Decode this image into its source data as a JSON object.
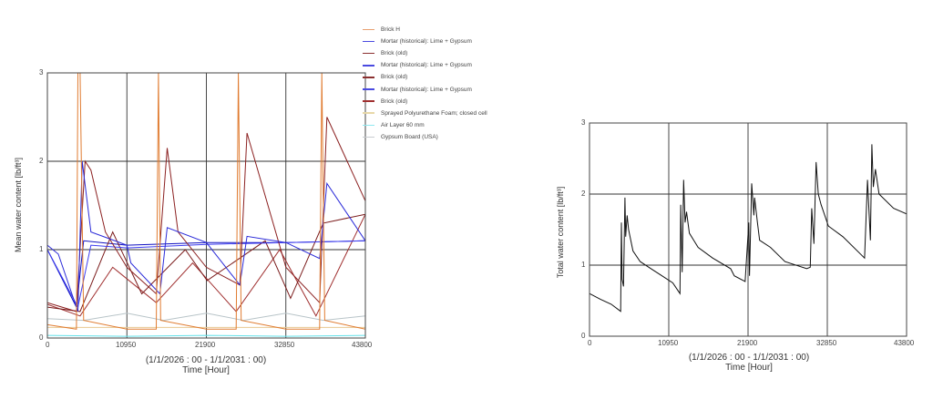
{
  "chart_data": [
    {
      "type": "line",
      "title": "",
      "xlabel": "Time  [Hour]",
      "xsubtitle": "(1/1/2026 : 00 - 1/1/2031 : 00)",
      "ylabel": "Mean water content [lb/ft³]",
      "xlim": [
        0,
        43800
      ],
      "ylim": [
        0,
        3
      ],
      "x_ticks": [
        "0",
        "10950",
        "21900",
        "32850",
        "43800"
      ],
      "y_ticks": [
        "0",
        "1",
        "2",
        "3"
      ],
      "grid": true,
      "legend_position": "right-top",
      "series": [
        {
          "name": "Brick H",
          "color": "#e07b30",
          "x": [
            0,
            4000,
            4200,
            4500,
            5000,
            10950,
            15000,
            15300,
            15600,
            21900,
            26000,
            26300,
            26700,
            32850,
            37500,
            37800,
            38200,
            43800
          ],
          "values": [
            0.15,
            0.1,
            3.0,
            3.0,
            0.2,
            0.1,
            0.1,
            3.0,
            0.2,
            0.1,
            0.1,
            3.0,
            0.2,
            0.1,
            0.1,
            3.0,
            0.2,
            0.1
          ]
        },
        {
          "name": "Mortar (historical): Lime + Gypsum",
          "color": "#2a2ad8",
          "x": [
            0,
            1500,
            4200,
            4800,
            6000,
            10950,
            11500,
            15500,
            16500,
            21900,
            26500,
            27500,
            32850,
            37500,
            38500,
            43800
          ],
          "values": [
            1.05,
            0.95,
            0.3,
            2.0,
            1.2,
            1.05,
            0.85,
            0.5,
            1.25,
            1.08,
            0.6,
            1.15,
            1.08,
            0.9,
            1.75,
            1.1
          ]
        },
        {
          "name": "Brick (old)",
          "color": "#8b2020",
          "x": [
            0,
            4000,
            5200,
            6000,
            8000,
            10950,
            15000,
            16500,
            18000,
            21900,
            26500,
            27500,
            32850,
            37500,
            38500,
            43800
          ],
          "values": [
            0.4,
            0.3,
            2.0,
            1.9,
            1.2,
            0.8,
            0.5,
            2.15,
            1.2,
            0.8,
            0.6,
            2.32,
            0.8,
            0.4,
            2.5,
            1.55
          ]
        },
        {
          "name": "Mortar (historical): Lime + Gypsum",
          "color": "#3c3cf0",
          "x": [
            0,
            4200,
            6000,
            10950,
            21900,
            32850,
            43800
          ],
          "values": [
            1.0,
            0.35,
            1.05,
            1.02,
            1.06,
            1.08,
            1.1
          ]
        },
        {
          "name": "Brick (old)",
          "color": "#7a1a1a",
          "x": [
            0,
            4500,
            9000,
            13000,
            19000,
            22000,
            30000,
            33500,
            38000,
            43800
          ],
          "values": [
            0.35,
            0.3,
            1.2,
            0.5,
            1.0,
            0.65,
            1.1,
            0.45,
            1.3,
            1.4
          ]
        },
        {
          "name": "Mortar (historical): Lime + Gypsum",
          "color": "#1010c0",
          "x": [
            0,
            4000,
            5000,
            10950,
            21900,
            32850,
            43800
          ],
          "values": [
            1.0,
            0.35,
            1.1,
            1.05,
            1.08,
            1.08,
            1.1
          ]
        },
        {
          "name": "Brick (old)",
          "color": "#a03030",
          "x": [
            0,
            4500,
            9000,
            15000,
            20000,
            26000,
            32000,
            37000,
            43800
          ],
          "values": [
            0.38,
            0.25,
            0.8,
            0.4,
            0.85,
            0.3,
            1.0,
            0.25,
            1.4
          ]
        },
        {
          "name": "Sprayed Polyurethane Foam; closed cell",
          "color": "#e8c890",
          "x": [
            0,
            43800
          ],
          "values": [
            0.12,
            0.12
          ]
        },
        {
          "name": "Air Layer 60 mm",
          "color": "#60e0e8",
          "x": [
            0,
            10950,
            21900,
            32850,
            43800
          ],
          "values": [
            0.03,
            0.02,
            0.03,
            0.02,
            0.03
          ]
        },
        {
          "name": "Gypsum Board (USA)",
          "color": "#b8c4c8",
          "x": [
            0,
            5000,
            10950,
            16000,
            21900,
            27000,
            32850,
            38000,
            43800
          ],
          "values": [
            0.22,
            0.2,
            0.28,
            0.2,
            0.28,
            0.2,
            0.28,
            0.2,
            0.25
          ]
        }
      ]
    },
    {
      "type": "line",
      "title": "",
      "xlabel": "Time  [Hour]",
      "xsubtitle": "(1/1/2026 : 00 - 1/1/2031 : 00)",
      "ylabel": "Total water content [lb/ft³]",
      "xlim": [
        0,
        43800
      ],
      "ylim": [
        0,
        3
      ],
      "x_ticks": [
        "0",
        "10950",
        "21900",
        "32850",
        "43800"
      ],
      "y_ticks": [
        "0",
        "1",
        "2",
        "3"
      ],
      "grid": true,
      "series": [
        {
          "name": "Total water content",
          "color": "#111111",
          "x": [
            0,
            1500,
            3000,
            4300,
            4400,
            4500,
            4700,
            4900,
            5000,
            5200,
            5400,
            6000,
            7000,
            8500,
            10000,
            11500,
            12500,
            12600,
            12800,
            13000,
            13200,
            13400,
            13800,
            15000,
            17000,
            19500,
            20000,
            21500,
            22000,
            22100,
            22400,
            22700,
            22800,
            23200,
            23500,
            25000,
            27000,
            30000,
            30500,
            30700,
            31000,
            31300,
            31600,
            32000,
            33000,
            35000,
            37500,
            38000,
            38400,
            38800,
            39000,
            39200,
            39500,
            40000,
            42000,
            43800
          ],
          "values": [
            0.6,
            0.52,
            0.45,
            0.35,
            1.6,
            0.8,
            0.7,
            1.95,
            1.4,
            1.7,
            1.5,
            1.2,
            1.05,
            0.95,
            0.85,
            0.75,
            0.6,
            1.85,
            0.9,
            2.2,
            1.6,
            1.75,
            1.45,
            1.25,
            1.1,
            0.95,
            0.85,
            0.77,
            1.6,
            0.85,
            2.15,
            1.7,
            1.95,
            1.6,
            1.35,
            1.25,
            1.05,
            0.95,
            0.97,
            1.8,
            1.3,
            2.45,
            2.0,
            1.85,
            1.55,
            1.4,
            1.15,
            1.1,
            2.2,
            1.35,
            2.7,
            2.1,
            2.35,
            2.0,
            1.8,
            1.72
          ]
        }
      ]
    }
  ],
  "left_chart": {
    "ylabel": "Mean water content [lb/ft³]",
    "xsubtitle": "(1/1/2026 : 00 - 1/1/2031 : 00)",
    "xlabel": "Time  [Hour]",
    "x_ticks": [
      "0",
      "10950",
      "21900",
      "32850",
      "43800"
    ],
    "y_ticks": [
      "0",
      "1",
      "2",
      "3"
    ],
    "legend": [
      {
        "label": "Brick H",
        "color": "#e8a070"
      },
      {
        "label": "Mortar (historical): Lime + Gypsum",
        "color": "#4a4ae0"
      },
      {
        "label": "Brick (old)",
        "color": "#8b3030"
      },
      {
        "label": "Mortar (historical): Lime + Gypsum",
        "color": "#4a4ae0"
      },
      {
        "label": "Brick (old)",
        "color": "#8b3030"
      },
      {
        "label": "Mortar (historical): Lime + Gypsum",
        "color": "#4a4ae0"
      },
      {
        "label": "Brick (old)",
        "color": "#a03030"
      },
      {
        "label": "Sprayed Polyurethane Foam; closed cell",
        "color": "#e8d8a8"
      },
      {
        "label": "Air Layer 60 mm",
        "color": "#90e8f0"
      },
      {
        "label": "Gypsum Board (USA)",
        "color": "#c8ccd0"
      }
    ]
  },
  "right_chart": {
    "ylabel": "Total water content [lb/ft³]",
    "xsubtitle": "(1/1/2026 : 00 - 1/1/2031 : 00)",
    "xlabel": "Time  [Hour]",
    "x_ticks": [
      "0",
      "10950",
      "21900",
      "32850",
      "43800"
    ],
    "y_ticks": [
      "0",
      "1",
      "2",
      "3"
    ]
  }
}
